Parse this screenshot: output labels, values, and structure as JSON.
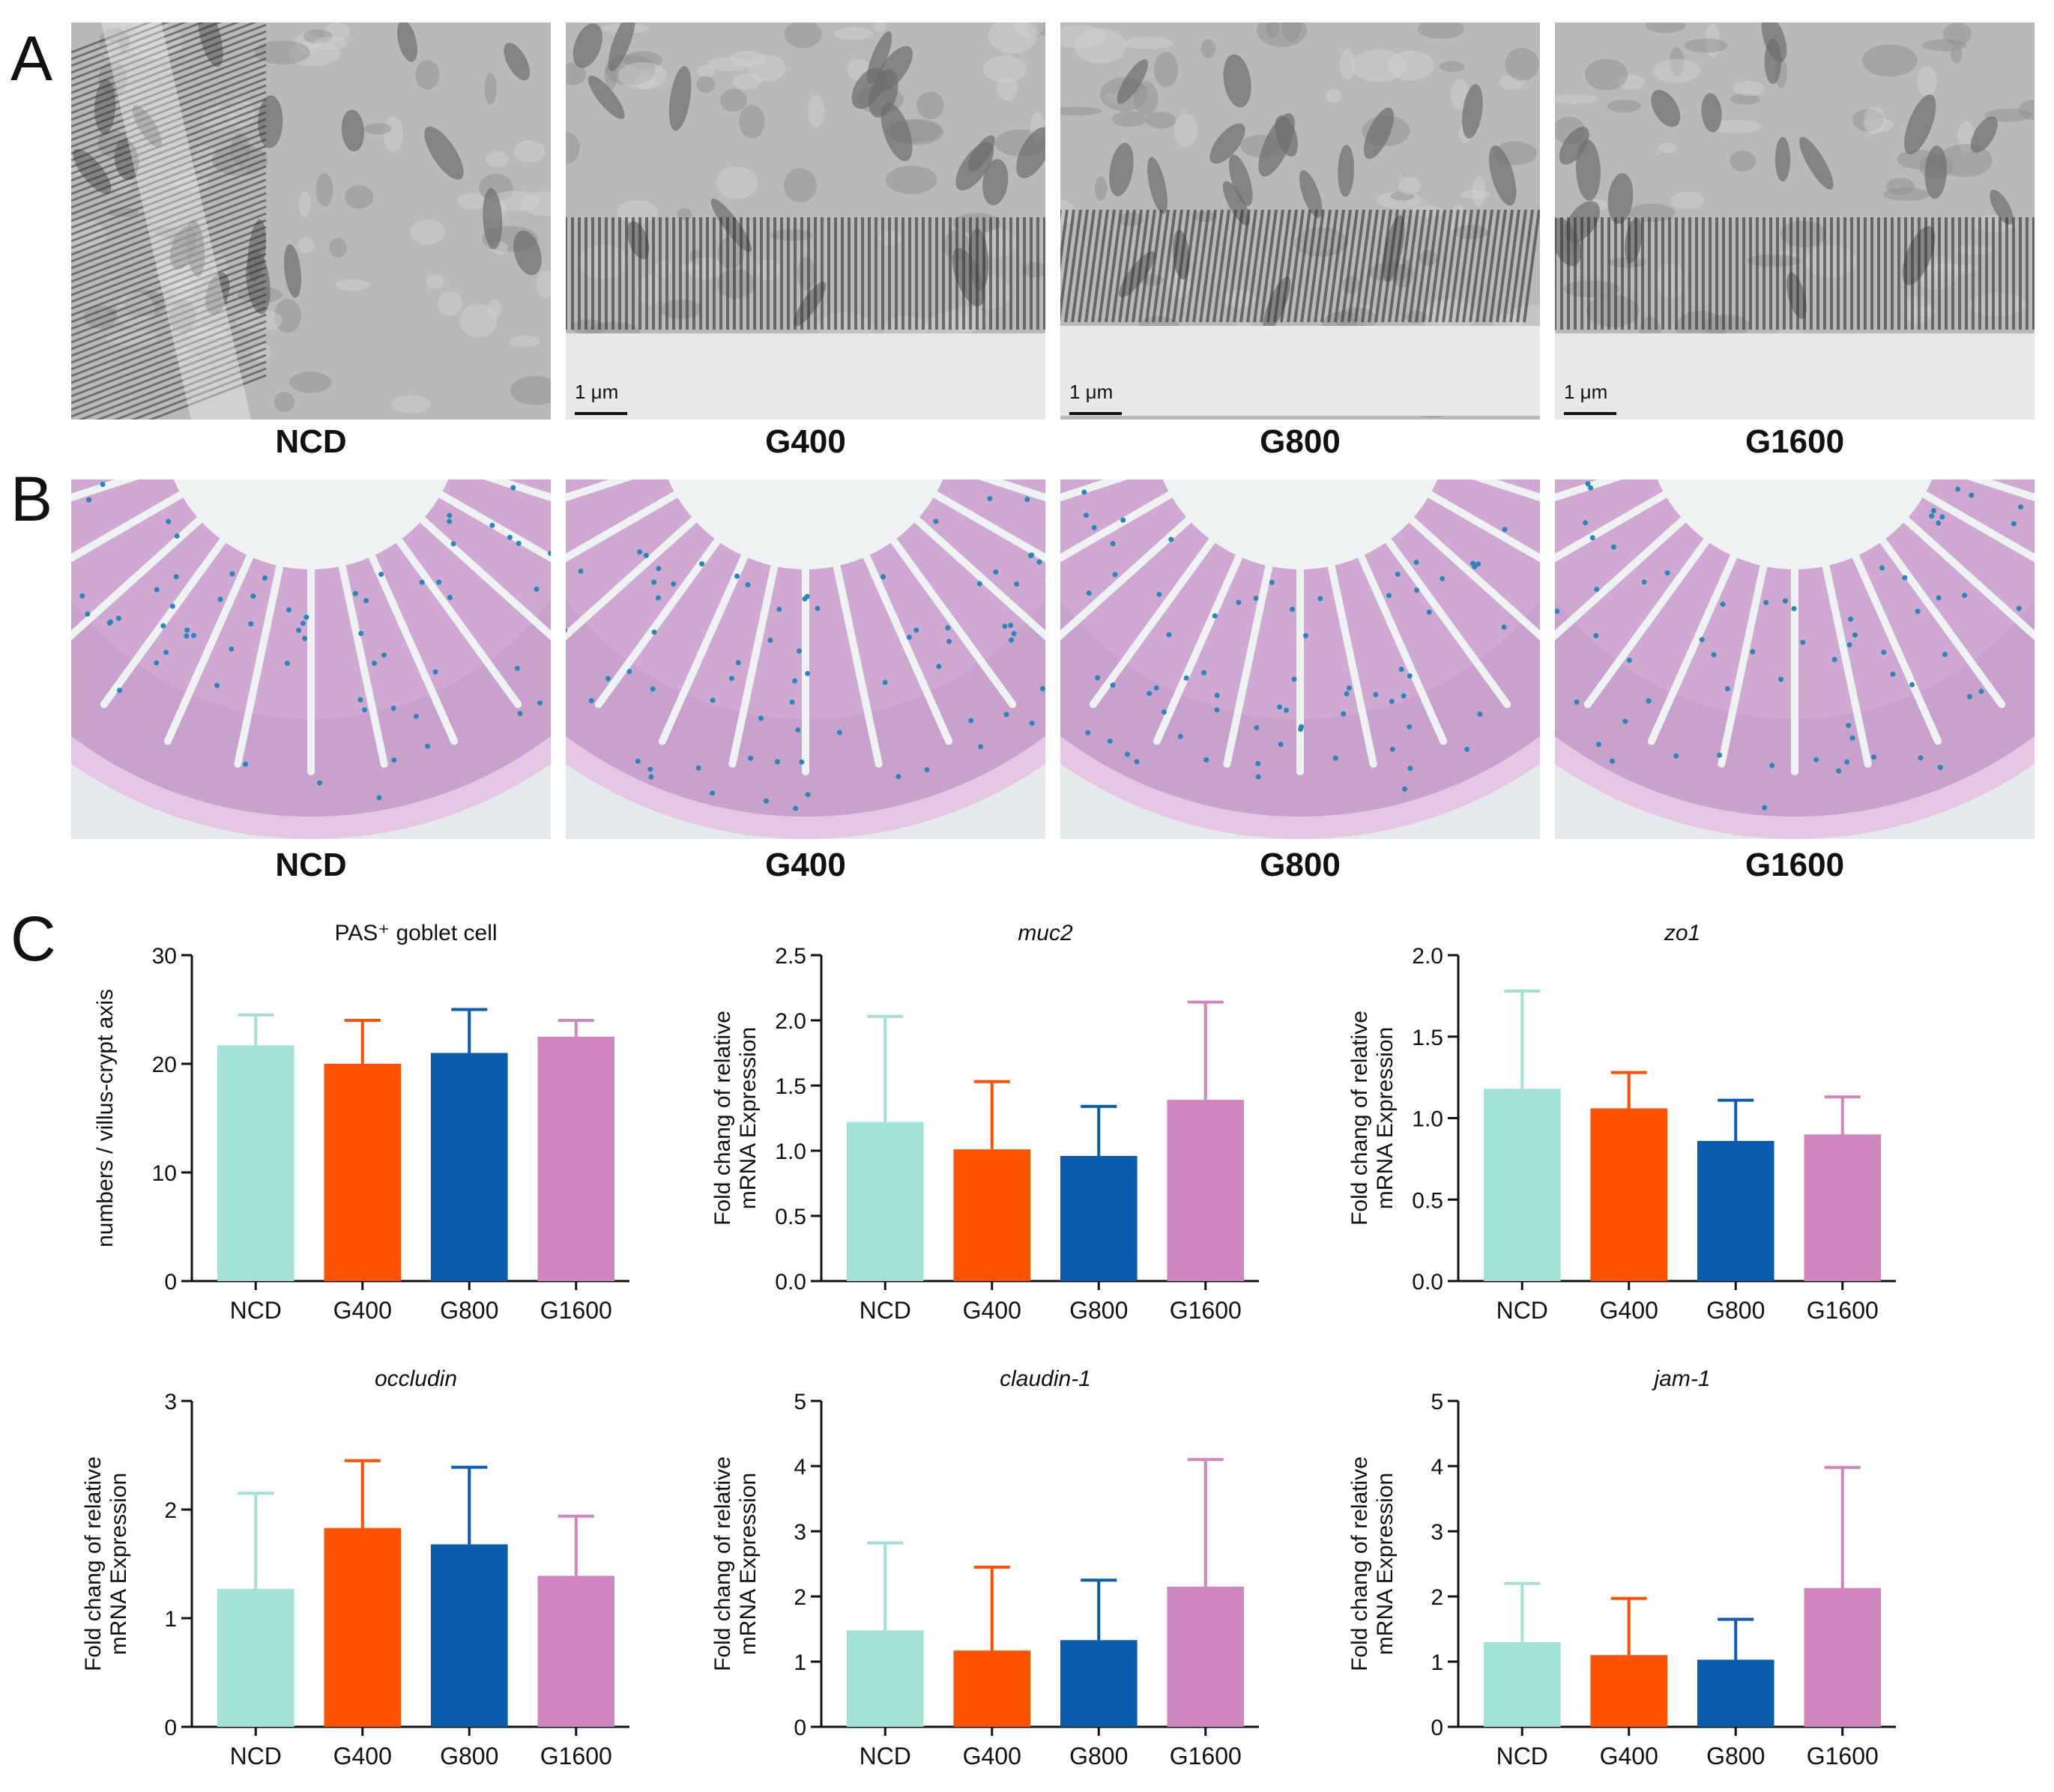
{
  "panels": {
    "A": {
      "letter": "A",
      "tiles": [
        {
          "caption": "NCD",
          "scale": ""
        },
        {
          "caption": "G400",
          "scale": "1 μm"
        },
        {
          "caption": "G800",
          "scale": "1 μm"
        },
        {
          "caption": "G1600",
          "scale": "1 μm"
        }
      ]
    },
    "B": {
      "letter": "B",
      "tiles": [
        {
          "caption": "NCD"
        },
        {
          "caption": "G400"
        },
        {
          "caption": "G800"
        },
        {
          "caption": "G1600"
        }
      ]
    },
    "C": {
      "letter": "C"
    }
  },
  "colors": {
    "NCD": "#a3e0d6",
    "G400": "#ff5200",
    "G800": "#0a5cae",
    "G1600": "#cf86be",
    "tem_bg": "#b9b9b9",
    "histo_bg": "#c8a2cc",
    "goblet": "#2b86b8"
  },
  "chart_data": [
    {
      "type": "bar",
      "title": "PAS⁺ goblet cell",
      "title_italic": false,
      "ylabel": [
        "numbers / villus-crypt axis"
      ],
      "categories": [
        "NCD",
        "G400",
        "G800",
        "G1600"
      ],
      "values": [
        21.7,
        20.0,
        21.0,
        22.5
      ],
      "errors": [
        2.8,
        4.0,
        4.0,
        1.5
      ],
      "ylim": [
        0,
        30
      ],
      "yticks": [
        "0",
        "10",
        "20",
        "30"
      ]
    },
    {
      "type": "bar",
      "title": "muc2",
      "title_italic": true,
      "ylabel": [
        "Fold chang of relative",
        "mRNA Expression"
      ],
      "categories": [
        "NCD",
        "G400",
        "G800",
        "G1600"
      ],
      "values": [
        1.22,
        1.01,
        0.96,
        1.39
      ],
      "errors": [
        0.81,
        0.52,
        0.38,
        0.75
      ],
      "ylim": [
        0,
        2.5
      ],
      "yticks": [
        "0.0",
        "0.5",
        "1.0",
        "1.5",
        "2.0",
        "2.5"
      ]
    },
    {
      "type": "bar",
      "title": "zo1",
      "title_italic": true,
      "ylabel": [
        "Fold chang of relative",
        "mRNA Expression"
      ],
      "categories": [
        "NCD",
        "G400",
        "G800",
        "G1600"
      ],
      "values": [
        1.18,
        1.06,
        0.86,
        0.9
      ],
      "errors": [
        0.6,
        0.22,
        0.25,
        0.23
      ],
      "ylim": [
        0,
        2.0
      ],
      "yticks": [
        "0.0",
        "0.5",
        "1.0",
        "1.5",
        "2.0"
      ]
    },
    {
      "type": "bar",
      "title": "occludin",
      "title_italic": true,
      "ylabel": [
        "Fold chang of relative",
        "mRNA Expression"
      ],
      "categories": [
        "NCD",
        "G400",
        "G800",
        "G1600"
      ],
      "values": [
        1.27,
        1.83,
        1.68,
        1.39
      ],
      "errors": [
        0.88,
        0.62,
        0.71,
        0.55
      ],
      "ylim": [
        0,
        3
      ],
      "yticks": [
        "0",
        "1",
        "2",
        "3"
      ]
    },
    {
      "type": "bar",
      "title": "claudin-1",
      "title_italic": true,
      "ylabel": [
        "Fold chang of relative",
        "mRNA Expression"
      ],
      "categories": [
        "NCD",
        "G400",
        "G800",
        "G1600"
      ],
      "values": [
        1.48,
        1.17,
        1.33,
        2.15
      ],
      "errors": [
        1.34,
        1.28,
        0.92,
        1.95
      ],
      "ylim": [
        0,
        5
      ],
      "yticks": [
        "0",
        "1",
        "2",
        "3",
        "4",
        "5"
      ]
    },
    {
      "type": "bar",
      "title": "jam-1",
      "title_italic": true,
      "ylabel": [
        "Fold chang of relative",
        "mRNA Expression"
      ],
      "categories": [
        "NCD",
        "G400",
        "G800",
        "G1600"
      ],
      "values": [
        1.3,
        1.1,
        1.03,
        2.13
      ],
      "errors": [
        0.9,
        0.87,
        0.62,
        1.85
      ],
      "ylim": [
        0,
        5
      ],
      "yticks": [
        "0",
        "1",
        "2",
        "3",
        "4",
        "5"
      ]
    }
  ]
}
